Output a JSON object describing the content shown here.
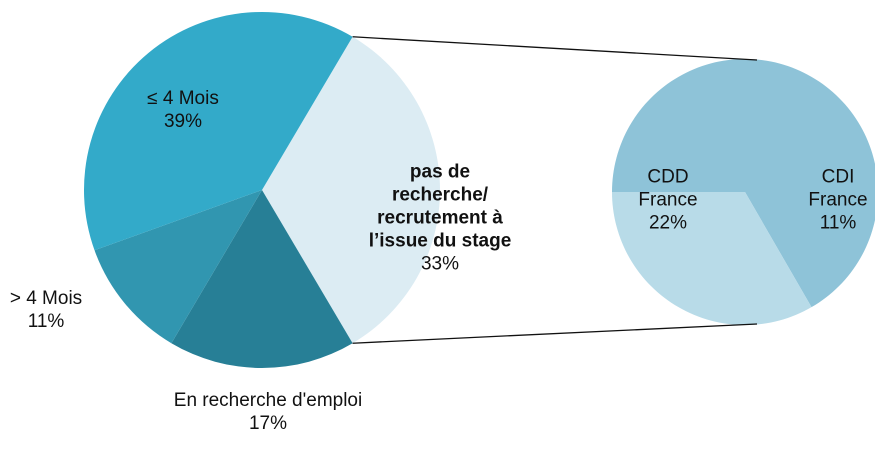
{
  "chart_data": {
    "type": "pie_of_pie",
    "categories": [
      "pas de recherche/ recrutement à l’issue du stage",
      "En recherche d'emploi",
      "> 4 Mois",
      "≤ 4 Mois"
    ],
    "values": [
      33,
      17,
      11,
      39
    ],
    "value_labels": [
      "33%",
      "17%",
      "11%",
      "39%"
    ],
    "colors": [
      "#dcecf3",
      "#277f96",
      "#3196b0",
      "#33aac9"
    ],
    "breakdown": {
      "categories": [
        "CDD France",
        "CDI France"
      ],
      "values": [
        22,
        11
      ],
      "value_labels": [
        "22%",
        "11%"
      ],
      "colors": [
        "#8ec3d8",
        "#b8dbe8"
      ]
    }
  }
}
